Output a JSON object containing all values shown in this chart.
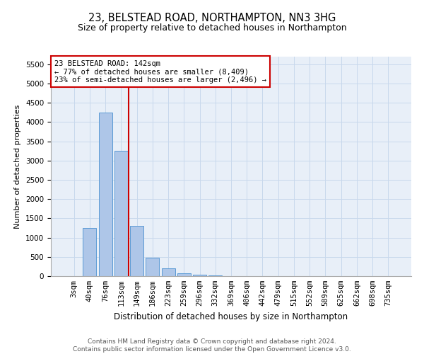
{
  "title": "23, BELSTEAD ROAD, NORTHAMPTON, NN3 3HG",
  "subtitle": "Size of property relative to detached houses in Northampton",
  "xlabel": "Distribution of detached houses by size in Northampton",
  "ylabel": "Number of detached properties",
  "categories": [
    "3sqm",
    "40sqm",
    "76sqm",
    "113sqm",
    "149sqm",
    "186sqm",
    "223sqm",
    "259sqm",
    "296sqm",
    "332sqm",
    "369sqm",
    "406sqm",
    "442sqm",
    "479sqm",
    "515sqm",
    "552sqm",
    "589sqm",
    "625sqm",
    "662sqm",
    "698sqm",
    "735sqm"
  ],
  "values": [
    0,
    1250,
    4250,
    3250,
    1300,
    480,
    200,
    80,
    45,
    10,
    0,
    0,
    0,
    0,
    0,
    0,
    0,
    0,
    0,
    0,
    0
  ],
  "bar_color": "#aec6e8",
  "bar_edge_color": "#5b9bd5",
  "annotation_text": "23 BELSTEAD ROAD: 142sqm\n← 77% of detached houses are smaller (8,409)\n23% of semi-detached houses are larger (2,496) →",
  "annotation_box_color": "#ffffff",
  "annotation_box_edge": "#cc0000",
  "vline_color": "#cc0000",
  "vline_x": 3.47,
  "ylim": [
    0,
    5700
  ],
  "yticks": [
    0,
    500,
    1000,
    1500,
    2000,
    2500,
    3000,
    3500,
    4000,
    4500,
    5000,
    5500
  ],
  "grid_color": "#c8d8ec",
  "background_color": "#e8eff8",
  "footer": "Contains HM Land Registry data © Crown copyright and database right 2024.\nContains public sector information licensed under the Open Government Licence v3.0.",
  "title_fontsize": 10.5,
  "subtitle_fontsize": 9,
  "xlabel_fontsize": 8.5,
  "ylabel_fontsize": 8,
  "tick_fontsize": 7.5,
  "annotation_fontsize": 7.5,
  "footer_fontsize": 6.5
}
